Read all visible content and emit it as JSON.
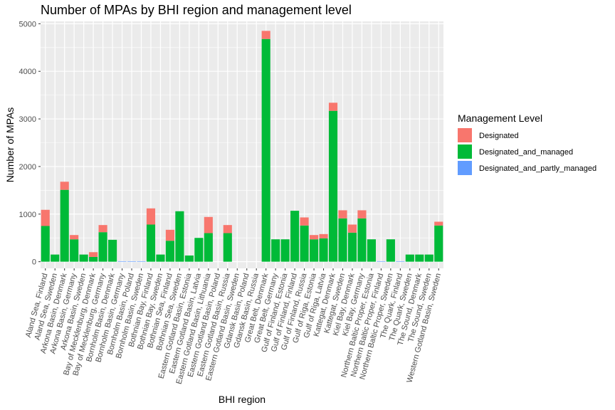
{
  "chart_data": {
    "type": "bar",
    "stacked": true,
    "title": "Number of MPAs by BHI region and management level",
    "xlabel": "BHI region",
    "ylabel": "Number of MPAs",
    "ylim": [
      -140,
      5050
    ],
    "yticks": [
      0,
      1000,
      2000,
      3000,
      4000,
      5000
    ],
    "grid": true,
    "legend_position": "right",
    "legend_title": "Management Level",
    "categories": [
      "Aland Sea, Finland",
      "Aland Sea, Sweden",
      "Arkona Basin, Denmark",
      "Arkona Basin, Germany",
      "Arkona Basin, Sweden",
      "Bay of Mecklenburg, Denmark",
      "Bay of Mecklenburg, Germany",
      "Bornholm Basin, Denmark",
      "Bornholm Basin, Germany",
      "Bornholm Basin, Poland",
      "Bornholm Basin, Sweden",
      "Bothnian Bay, Finland",
      "Bothnian Bay, Sweden",
      "Bothnian Sea, Finland",
      "Bothnian Sea, Sweden",
      "Eastern Gotland Basin, Estonia",
      "Eastern Gotland Basin, Latvia",
      "Eastern Gotland Basin, Lithuania",
      "Eastern Gotland Basin, Poland",
      "Eastern Gotland Basin, Russia",
      "Eastern Gotland Basin, Sweden",
      "Gdansk Basin, Poland",
      "Gdansk Basin, Russia",
      "Great Belt, Denmark",
      "Great Belt, Germany",
      "Gulf of Finland, Estonia",
      "Gulf of Finland, Finland",
      "Gulf of Finland, Russia",
      "Gulf of Riga, Estonia",
      "Gulf of Riga, Latvia",
      "Kattegat, Denmark",
      "Kattegat, Sweden",
      "Kiel Bay, Denmark",
      "Kiel Bay, Germany",
      "Northern Baltic Proper, Estonia",
      "Northern Baltic Proper, Finland",
      "Northern Baltic Proper, Sweden",
      "The Quark, Finland",
      "The Quark, Sweden",
      "The Sound, Denmark",
      "The Sound, Sweden",
      "Western Gotland Basin, Sweden"
    ],
    "series": [
      {
        "name": "Designated",
        "color": "#F8766D",
        "values": [
          340,
          0,
          170,
          90,
          0,
          100,
          150,
          0,
          0,
          0,
          0,
          340,
          0,
          230,
          0,
          0,
          0,
          340,
          0,
          170,
          0,
          0,
          0,
          170,
          0,
          0,
          0,
          170,
          90,
          90,
          170,
          170,
          170,
          170,
          0,
          0,
          0,
          0,
          0,
          0,
          0,
          80
        ]
      },
      {
        "name": "Designated_and_managed",
        "color": "#00BA38",
        "values": [
          750,
          150,
          1510,
          470,
          150,
          100,
          620,
          460,
          0,
          0,
          0,
          780,
          150,
          440,
          1060,
          130,
          500,
          600,
          0,
          600,
          0,
          0,
          0,
          4680,
          470,
          470,
          1070,
          760,
          470,
          490,
          3170,
          910,
          610,
          910,
          470,
          0,
          470,
          0,
          150,
          150,
          150,
          760
        ]
      },
      {
        "name": "Designated_and_partly_managed",
        "color": "#619CFF",
        "values": [
          0,
          0,
          0,
          0,
          0,
          0,
          0,
          0,
          10,
          10,
          10,
          0,
          0,
          0,
          0,
          0,
          0,
          0,
          0,
          0,
          0,
          0,
          0,
          0,
          0,
          0,
          0,
          0,
          0,
          0,
          0,
          0,
          0,
          0,
          0,
          10,
          0,
          10,
          0,
          0,
          0,
          0
        ]
      }
    ]
  }
}
